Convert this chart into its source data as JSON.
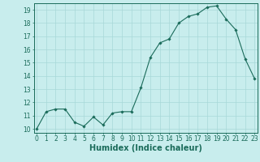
{
  "x": [
    0,
    1,
    2,
    3,
    4,
    5,
    6,
    7,
    8,
    9,
    10,
    11,
    12,
    13,
    14,
    15,
    16,
    17,
    18,
    19,
    20,
    21,
    22,
    23
  ],
  "y": [
    10.0,
    11.3,
    11.5,
    11.5,
    10.5,
    10.2,
    10.9,
    10.3,
    11.2,
    11.3,
    11.3,
    13.1,
    15.4,
    16.5,
    16.8,
    18.0,
    18.5,
    18.7,
    19.2,
    19.3,
    18.3,
    17.5,
    15.3,
    13.8
  ],
  "xlabel": "Humidex (Indice chaleur)",
  "xlim": [
    -0.3,
    23.3
  ],
  "ylim": [
    9.7,
    19.5
  ],
  "yticks": [
    10,
    11,
    12,
    13,
    14,
    15,
    16,
    17,
    18,
    19
  ],
  "xticks": [
    0,
    1,
    2,
    3,
    4,
    5,
    6,
    7,
    8,
    9,
    10,
    11,
    12,
    13,
    14,
    15,
    16,
    17,
    18,
    19,
    20,
    21,
    22,
    23
  ],
  "line_color": "#1a6b5a",
  "marker": "D",
  "marker_size": 1.8,
  "bg_color": "#c8eded",
  "grid_color": "#a8d8d8",
  "tick_label_fontsize": 5.5,
  "xlabel_fontsize": 7.0
}
